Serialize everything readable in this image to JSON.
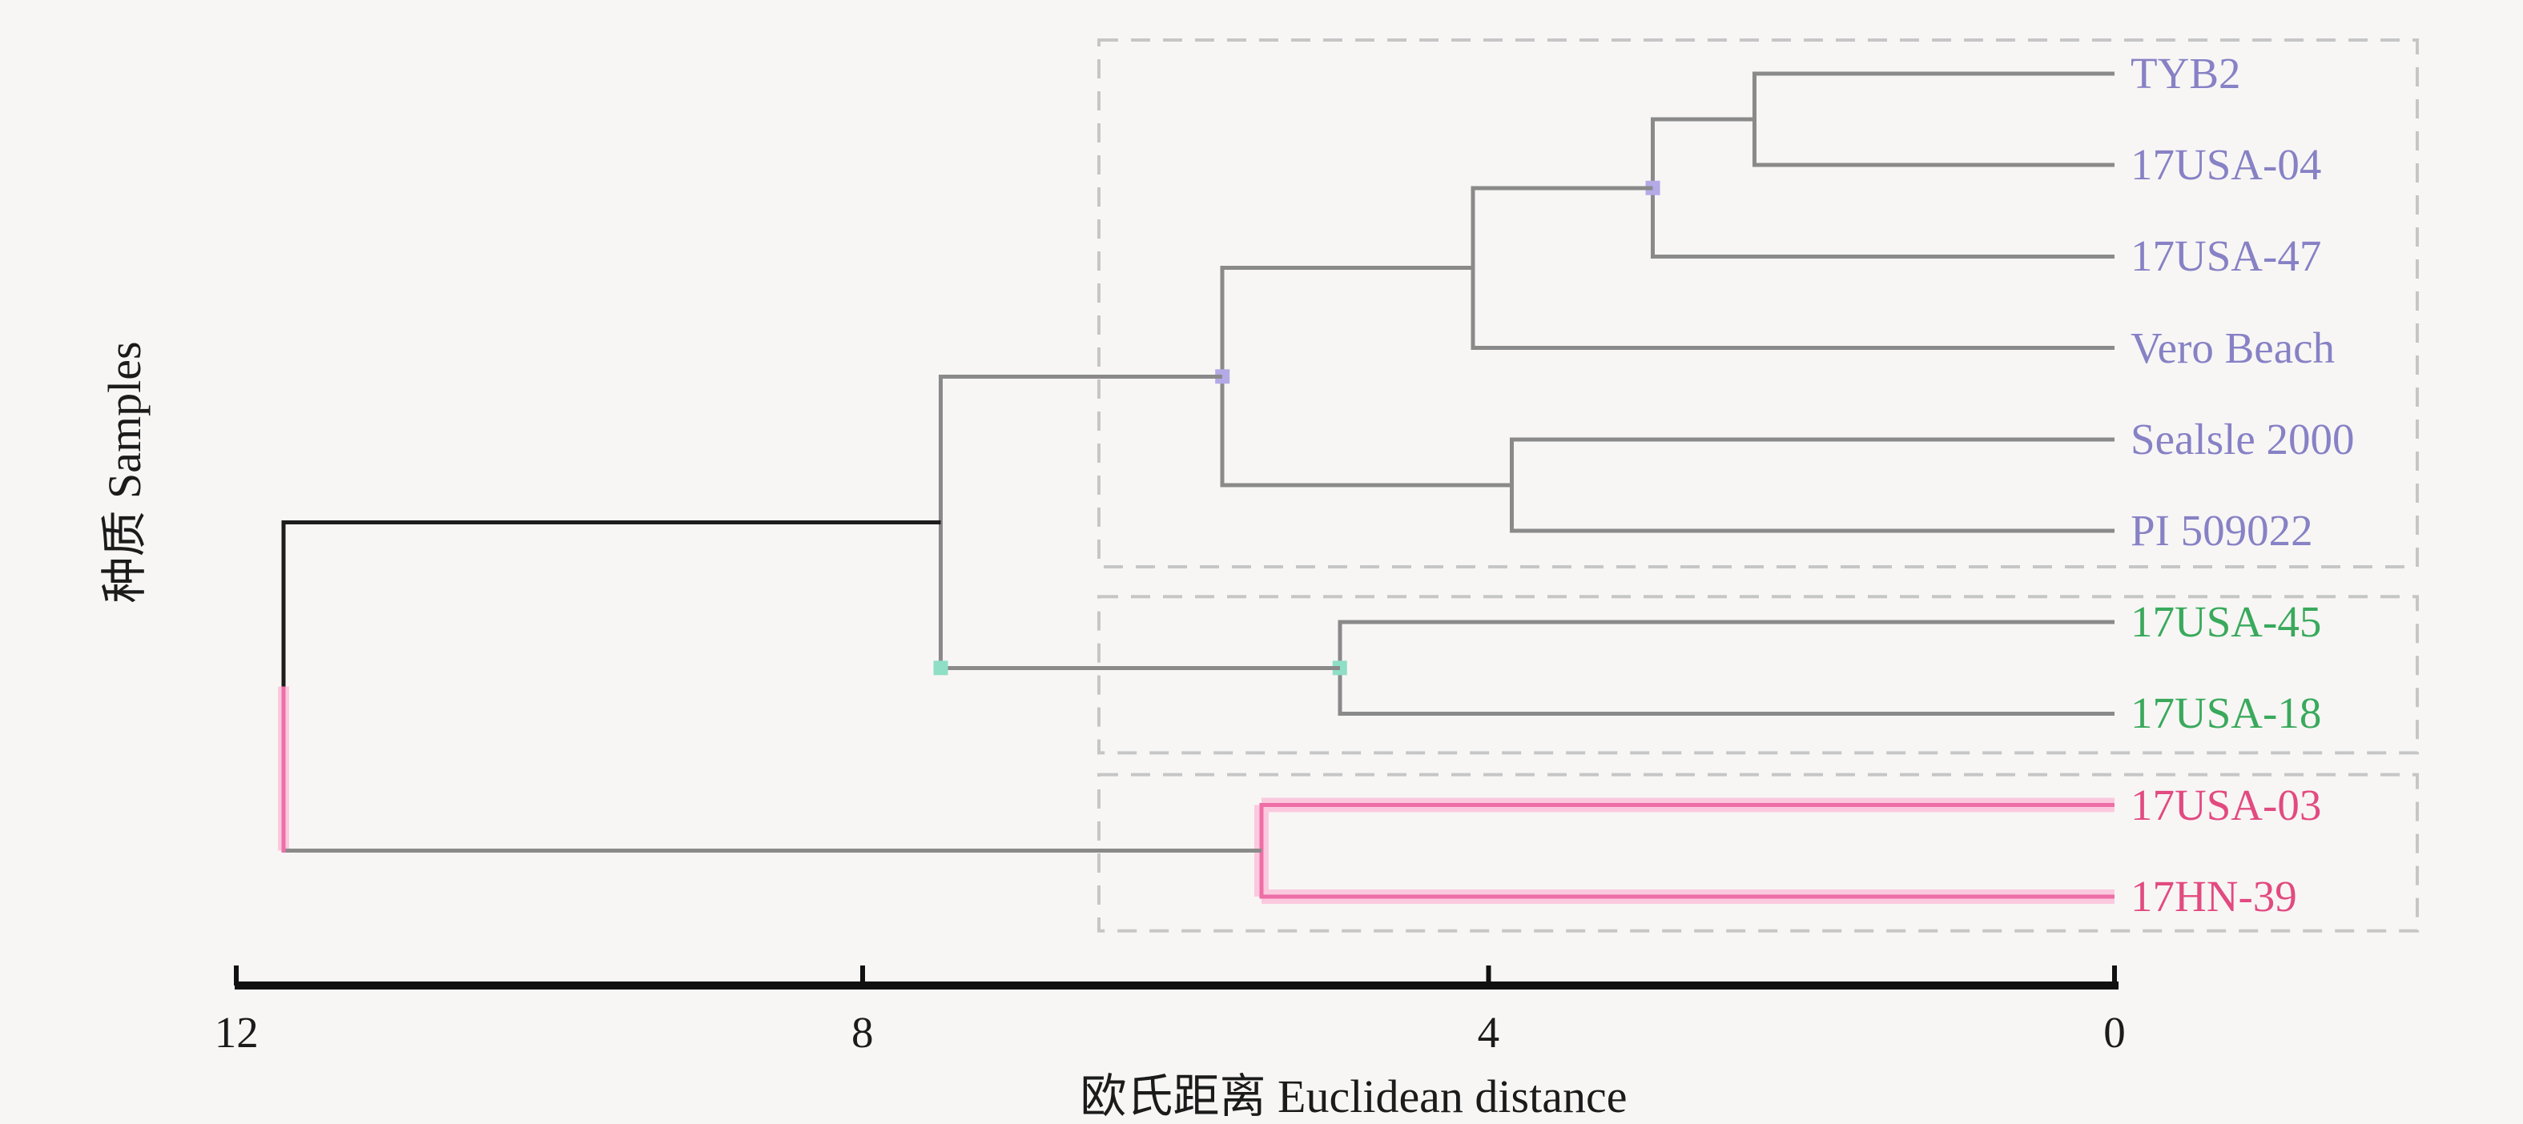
{
  "figure": {
    "ylabel": "种质 Samples",
    "xlabel": "欧氏距离 Euclidean distance",
    "background": "#f7f6f5"
  },
  "chart_data": {
    "type": "dendrogram",
    "orientation": "horizontal, distance decreasing left-to-right, leaves on right",
    "title": "",
    "xlabel": "欧氏距离 Euclidean distance",
    "ylabel": "种质 Samples",
    "axis": {
      "ticks": [
        12,
        8,
        4,
        0
      ],
      "range": [
        12,
        0
      ],
      "grid": false
    },
    "leaves": [
      {
        "label": "TYB2",
        "group": "violet"
      },
      {
        "label": "17USA-04",
        "group": "violet"
      },
      {
        "label": "17USA-47",
        "group": "violet"
      },
      {
        "label": "Vero Beach",
        "group": "violet"
      },
      {
        "label": "Sealsle 2000",
        "group": "violet"
      },
      {
        "label": "PI 509022",
        "group": "violet"
      },
      {
        "label": "17USA-45",
        "group": "green"
      },
      {
        "label": "17USA-18",
        "group": "green"
      },
      {
        "label": "17USA-03",
        "group": "pink"
      },
      {
        "label": "17HN-39",
        "group": "pink"
      }
    ],
    "groups": {
      "violet": {
        "label_color": "#8781c5"
      },
      "green": {
        "label_color": "#3aa95c"
      },
      "pink": {
        "label_color": "#e24a80"
      }
    },
    "merges": [
      {
        "clusters": [
          "TYB2",
          "17USA-04"
        ],
        "distance": 2.3
      },
      {
        "clusters": [
          "(TYB2,17USA-04)",
          "17USA-47"
        ],
        "distance": 2.95
      },
      {
        "clusters": [
          "((TYB2,17USA-04),17USA-47)",
          "Vero Beach"
        ],
        "distance": 4.1
      },
      {
        "clusters": [
          "Sealsle 2000",
          "PI 509022"
        ],
        "distance": 3.85
      },
      {
        "clusters": [
          "violet-upper-four",
          "(Sealsle 2000,PI 509022)"
        ],
        "distance": 5.7
      },
      {
        "clusters": [
          "17USA-45",
          "17USA-18"
        ],
        "distance": 4.95
      },
      {
        "clusters": [
          "violet-cluster",
          "green-cluster"
        ],
        "distance": 7.5
      },
      {
        "clusters": [
          "17USA-03",
          "17HN-39"
        ],
        "distance": 5.45
      },
      {
        "clusters": [
          "upper-eight",
          "pink-cluster"
        ],
        "distance": 11.7
      }
    ],
    "tree": {
      "h": 11.7,
      "vt": "black",
      "vb": "pink",
      "bt": "black",
      "bb": "gray",
      "glow_vb": true,
      "children": [
        {
          "h": 7.5,
          "mark_bottom": "#8fdec6",
          "children": [
            {
              "h": 5.7,
              "mark": "#b3aae6",
              "children": [
                {
                  "h": 4.1,
                  "children": [
                    {
                      "h": 2.95,
                      "mark": "#b3aae6",
                      "children": [
                        {
                          "h": 2.3,
                          "children": [
                            {
                              "leaf": 0
                            },
                            {
                              "leaf": 1
                            }
                          ]
                        },
                        {
                          "leaf": 2
                        }
                      ]
                    },
                    {
                      "leaf": 3
                    }
                  ]
                },
                {
                  "h": 3.85,
                  "children": [
                    {
                      "leaf": 4
                    },
                    {
                      "leaf": 5
                    }
                  ]
                }
              ]
            },
            {
              "h": 4.95,
              "mark": "#8fdec6",
              "children": [
                {
                  "leaf": 6
                },
                {
                  "leaf": 7
                }
              ]
            }
          ]
        },
        {
          "h": 5.45,
          "all": "pink",
          "glow": true,
          "children": [
            {
              "leaf": 8
            },
            {
              "leaf": 9
            }
          ]
        }
      ]
    },
    "cluster_boxes": [
      {
        "from_leaf": 0,
        "to_leaf": 5
      },
      {
        "from_leaf": 6,
        "to_leaf": 7
      },
      {
        "from_leaf": 8,
        "to_leaf": 9
      }
    ],
    "line_colors": {
      "gray": "#8a8a8a",
      "black": "#1d1d1d",
      "pink": "#ee6ea6",
      "pink_glow": "#fbc9de",
      "box_dash": "#c6c6c6",
      "axis": "#111111"
    }
  }
}
